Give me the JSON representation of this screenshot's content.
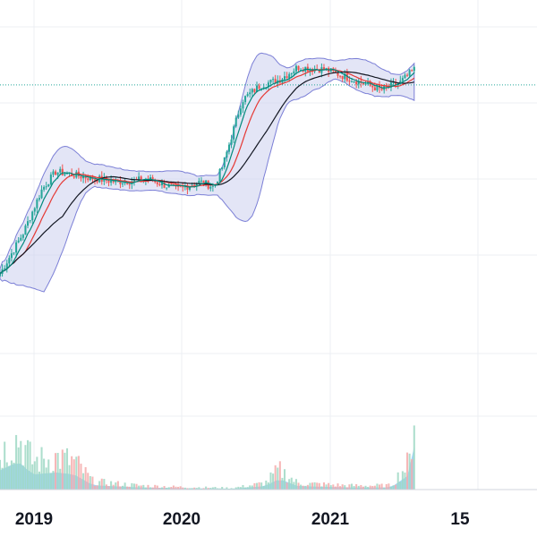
{
  "chart_data": {
    "type": "candlestick",
    "x_axis": {
      "tick_labels": [
        "2019",
        "2020",
        "2021",
        "15"
      ],
      "range": [
        "2018-09",
        "2022-04"
      ]
    },
    "price_pane": {
      "grid": true,
      "reference_line": {
        "style": "dotted",
        "color": "#26a69a",
        "level": 0.86
      },
      "bollinger_band": {
        "fill": "#d1d4f0",
        "stroke": "#7b7fd6"
      },
      "moving_averages": [
        {
          "color": "#e53935"
        },
        {
          "color": "#131722"
        },
        {
          "color": "#00897b"
        }
      ],
      "candles": {
        "up_color": "#26a69a",
        "down_color": "#ef5350",
        "approx_close_path": [
          [
            0,
            0.12
          ],
          [
            0.05,
            0.28
          ],
          [
            0.09,
            0.45
          ],
          [
            0.12,
            0.52
          ],
          [
            0.18,
            0.5
          ],
          [
            0.25,
            0.48
          ],
          [
            0.32,
            0.49
          ],
          [
            0.38,
            0.45
          ],
          [
            0.43,
            0.48
          ],
          [
            0.46,
            0.46
          ],
          [
            0.48,
            0.55
          ],
          [
            0.52,
            0.8
          ],
          [
            0.56,
            0.86
          ],
          [
            0.6,
            0.88
          ],
          [
            0.64,
            0.93
          ],
          [
            0.7,
            0.92
          ],
          [
            0.76,
            0.88
          ],
          [
            0.82,
            0.84
          ],
          [
            0.86,
            0.87
          ],
          [
            0.89,
            0.92
          ]
        ]
      }
    },
    "volume_pane": {
      "up_color": "#9fd8c4",
      "down_color": "#f4aaaa",
      "average_area_color": "#8ccbf2",
      "approx_levels": [
        [
          0,
          0.45
        ],
        [
          0.04,
          0.65
        ],
        [
          0.07,
          0.35
        ],
        [
          0.12,
          0.4
        ],
        [
          0.16,
          0.35
        ],
        [
          0.2,
          0.1
        ],
        [
          0.3,
          0.05
        ],
        [
          0.4,
          0.03
        ],
        [
          0.5,
          0.02
        ],
        [
          0.57,
          0.08
        ],
        [
          0.6,
          0.25
        ],
        [
          0.64,
          0.08
        ],
        [
          0.75,
          0.05
        ],
        [
          0.84,
          0.05
        ],
        [
          0.88,
          0.35
        ],
        [
          0.89,
          1.0
        ]
      ]
    },
    "colors": {
      "grid": "#eceff3",
      "axis_line": "#d1d4dc",
      "text": "#131722"
    }
  }
}
